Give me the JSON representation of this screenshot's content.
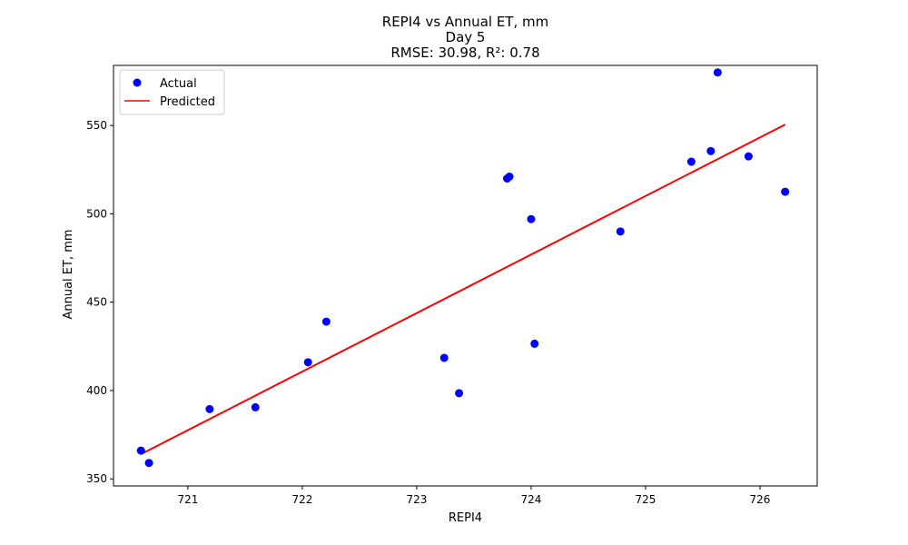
{
  "chart_data": {
    "type": "scatter",
    "title_lines": [
      "REPI4 vs Annual ET, mm",
      "Day 5",
      "RMSE: 30.98, R²: 0.78"
    ],
    "xlabel": "REPI4",
    "ylabel": "Annual ET, mm",
    "xlim": [
      720.35,
      726.5
    ],
    "ylim": [
      346,
      584
    ],
    "xticks": [
      721,
      722,
      723,
      724,
      725,
      726
    ],
    "yticks": [
      350,
      400,
      450,
      500,
      550
    ],
    "grid": false,
    "legend_position": "top-left",
    "series": [
      {
        "name": "Actual",
        "kind": "scatter",
        "color": "#0000ff",
        "points": [
          {
            "x": 720.59,
            "y": 366
          },
          {
            "x": 720.66,
            "y": 359
          },
          {
            "x": 721.19,
            "y": 389.5
          },
          {
            "x": 721.59,
            "y": 390.5
          },
          {
            "x": 722.05,
            "y": 416
          },
          {
            "x": 722.21,
            "y": 439
          },
          {
            "x": 723.24,
            "y": 418.5
          },
          {
            "x": 723.37,
            "y": 398.5
          },
          {
            "x": 723.79,
            "y": 520
          },
          {
            "x": 723.81,
            "y": 521
          },
          {
            "x": 724.0,
            "y": 497
          },
          {
            "x": 724.03,
            "y": 426.5
          },
          {
            "x": 724.78,
            "y": 490
          },
          {
            "x": 725.4,
            "y": 529.5
          },
          {
            "x": 725.57,
            "y": 535.5
          },
          {
            "x": 725.63,
            "y": 580
          },
          {
            "x": 725.9,
            "y": 532.5
          },
          {
            "x": 726.22,
            "y": 512.5
          }
        ]
      },
      {
        "name": "Predicted",
        "kind": "line",
        "color": "#ff0000",
        "points": [
          {
            "x": 720.59,
            "y": 364
          },
          {
            "x": 726.22,
            "y": 550.5
          }
        ]
      }
    ]
  }
}
